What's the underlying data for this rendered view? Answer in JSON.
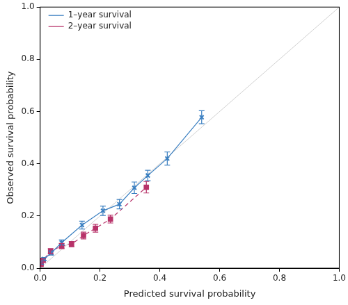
{
  "chart_data": {
    "type": "line",
    "x_label": "Predicted survival probability",
    "y_label": "Observed survival probability",
    "xlim": [
      0,
      1
    ],
    "ylim": [
      0,
      1
    ],
    "xticks": [
      {
        "value": 0,
        "label": "0.0"
      },
      0.2,
      0.4,
      0.6,
      0.8,
      {
        "value": 1,
        "label": "1.0"
      }
    ],
    "yticks": [
      {
        "value": 0,
        "label": "0.0"
      },
      0.2,
      0.4,
      0.6,
      0.8,
      {
        "value": 1,
        "label": "1.0"
      }
    ],
    "grid": false,
    "legend": "upper left",
    "reference_line": {
      "x": [
        0,
        1
      ],
      "y": [
        0,
        1
      ],
      "color": "#d0d0d0"
    },
    "series": [
      {
        "name": "1–year survival",
        "color": "#3a7fc1",
        "marker": "x",
        "line_style": "solid",
        "x": [
          0.003,
          0.013,
          0.037,
          0.072,
          0.14,
          0.21,
          0.265,
          0.315,
          0.36,
          0.425,
          0.54
        ],
        "values": [
          0.02,
          0.035,
          0.058,
          0.098,
          0.165,
          0.22,
          0.245,
          0.308,
          0.355,
          0.42,
          0.578
        ],
        "lower": [
          0.015,
          0.029,
          0.05,
          0.088,
          0.15,
          0.202,
          0.227,
          0.286,
          0.335,
          0.395,
          0.553
        ],
        "upper": [
          0.025,
          0.041,
          0.066,
          0.108,
          0.18,
          0.238,
          0.263,
          0.33,
          0.375,
          0.445,
          0.603
        ]
      },
      {
        "name": "2–year survival",
        "color": "#b8336a",
        "marker": "square",
        "line_style": "dashed",
        "x": [
          0.003,
          0.01,
          0.035,
          0.072,
          0.105,
          0.145,
          0.185,
          0.235,
          0.355
        ],
        "values": [
          0.015,
          0.03,
          0.065,
          0.085,
          0.092,
          0.125,
          0.153,
          0.188,
          0.31
        ],
        "lower": [
          0.011,
          0.024,
          0.055,
          0.075,
          0.082,
          0.112,
          0.138,
          0.173,
          0.288
        ],
        "upper": [
          0.019,
          0.036,
          0.075,
          0.095,
          0.102,
          0.138,
          0.168,
          0.203,
          0.332
        ]
      }
    ]
  }
}
